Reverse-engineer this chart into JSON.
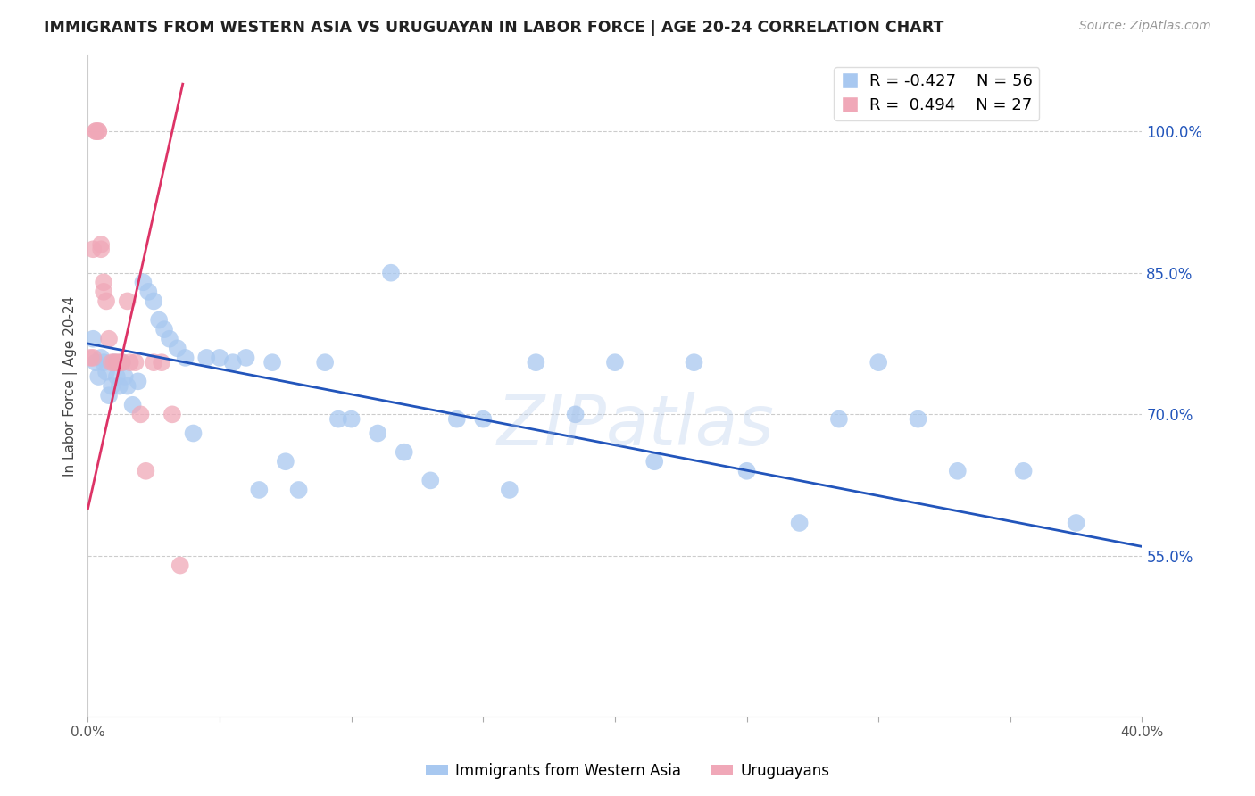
{
  "title": "IMMIGRANTS FROM WESTERN ASIA VS URUGUAYAN IN LABOR FORCE | AGE 20-24 CORRELATION CHART",
  "source": "Source: ZipAtlas.com",
  "ylabel": "In Labor Force | Age 20-24",
  "xlim": [
    0.0,
    0.4
  ],
  "ylim": [
    0.38,
    1.08
  ],
  "yticks_right": [
    0.55,
    0.7,
    0.85,
    1.0
  ],
  "ytick_labels_right": [
    "55.0%",
    "70.0%",
    "85.0%",
    "100.0%"
  ],
  "xticks": [
    0.0,
    0.05,
    0.1,
    0.15,
    0.2,
    0.25,
    0.3,
    0.35,
    0.4
  ],
  "xtick_labels": [
    "0.0%",
    "",
    "",
    "",
    "",
    "",
    "",
    "",
    "40.0%"
  ],
  "blue_color": "#a8c8f0",
  "pink_color": "#f0a8b8",
  "blue_line_color": "#2255bb",
  "pink_line_color": "#dd3366",
  "legend_blue_r": "R = -0.427",
  "legend_blue_n": "N = 56",
  "legend_pink_r": "R =  0.494",
  "legend_pink_n": "N = 27",
  "legend_label_blue": "Immigrants from Western Asia",
  "legend_label_pink": "Uruguayans",
  "watermark": "ZIPatlas",
  "blue_scatter_x": [
    0.002,
    0.003,
    0.004,
    0.005,
    0.006,
    0.007,
    0.008,
    0.009,
    0.01,
    0.011,
    0.012,
    0.013,
    0.014,
    0.015,
    0.017,
    0.019,
    0.021,
    0.023,
    0.025,
    0.027,
    0.029,
    0.031,
    0.034,
    0.037,
    0.04,
    0.045,
    0.05,
    0.055,
    0.06,
    0.065,
    0.07,
    0.075,
    0.08,
    0.09,
    0.095,
    0.1,
    0.11,
    0.115,
    0.12,
    0.13,
    0.14,
    0.15,
    0.16,
    0.17,
    0.185,
    0.2,
    0.215,
    0.23,
    0.25,
    0.27,
    0.285,
    0.3,
    0.315,
    0.33,
    0.355,
    0.375
  ],
  "blue_scatter_y": [
    0.78,
    0.755,
    0.74,
    0.76,
    0.755,
    0.745,
    0.72,
    0.73,
    0.755,
    0.74,
    0.73,
    0.755,
    0.74,
    0.73,
    0.71,
    0.735,
    0.84,
    0.83,
    0.82,
    0.8,
    0.79,
    0.78,
    0.77,
    0.76,
    0.68,
    0.76,
    0.76,
    0.755,
    0.76,
    0.62,
    0.755,
    0.65,
    0.62,
    0.755,
    0.695,
    0.695,
    0.68,
    0.85,
    0.66,
    0.63,
    0.695,
    0.695,
    0.62,
    0.755,
    0.7,
    0.755,
    0.65,
    0.755,
    0.64,
    0.585,
    0.695,
    0.755,
    0.695,
    0.64,
    0.64,
    0.585
  ],
  "pink_scatter_x": [
    0.001,
    0.002,
    0.002,
    0.003,
    0.003,
    0.004,
    0.004,
    0.005,
    0.005,
    0.006,
    0.006,
    0.007,
    0.008,
    0.009,
    0.01,
    0.011,
    0.012,
    0.013,
    0.015,
    0.016,
    0.018,
    0.02,
    0.022,
    0.025,
    0.028,
    0.032,
    0.035
  ],
  "pink_scatter_y": [
    0.76,
    0.76,
    0.875,
    1.0,
    1.0,
    1.0,
    1.0,
    0.88,
    0.875,
    0.84,
    0.83,
    0.82,
    0.78,
    0.755,
    0.755,
    0.755,
    0.755,
    0.755,
    0.82,
    0.755,
    0.755,
    0.7,
    0.64,
    0.755,
    0.755,
    0.7,
    0.54
  ],
  "blue_trend_x": [
    0.0,
    0.4
  ],
  "blue_trend_y": [
    0.775,
    0.56
  ],
  "pink_trend_x": [
    0.0,
    0.036
  ],
  "pink_trend_y": [
    0.6,
    1.05
  ]
}
